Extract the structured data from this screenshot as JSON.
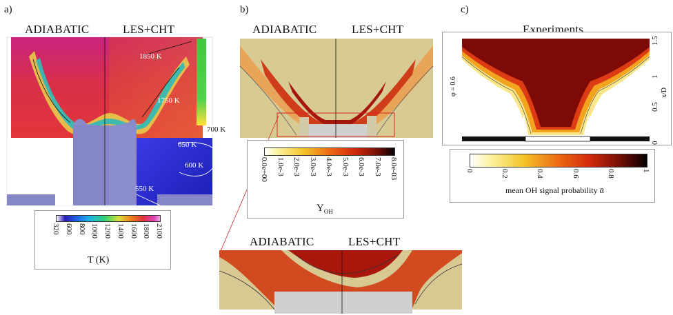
{
  "panel_a": {
    "label": "a)",
    "left_title": "ADIABATIC",
    "right_title": "LES+CHT",
    "isotherms": [
      "1850 K",
      "1750 K",
      "700 K",
      "650 K",
      "600 K",
      "550 K"
    ],
    "colorbar": {
      "label": "T (K)",
      "ticks": [
        "320",
        "600",
        "800",
        "1000",
        "1200",
        "1400",
        "1600",
        "1800",
        "2100"
      ]
    }
  },
  "panel_b": {
    "label": "b)",
    "left_title": "ADIABATIC",
    "right_title": "LES+CHT",
    "zoom_left_title": "ADIABATIC",
    "zoom_right_title": "LES+CHT",
    "colorbar": {
      "label": "Y",
      "label_sub": "OH",
      "ticks": [
        "0.0e+00",
        "1.0e-3",
        "2.0e-3",
        "3.0e-3",
        "4.0e-3",
        "5.0e-3",
        "6.0e-3",
        "7.0e-3",
        "8.0e-03"
      ]
    }
  },
  "panel_c": {
    "label": "c)",
    "title": "Experiments",
    "left_axis_label": "φ = 0.6",
    "right_axis_label": "x/D",
    "right_axis_ticks": [
      "1.5",
      "1",
      "0.5",
      "0"
    ],
    "colorbar": {
      "label": "mean OH signal probability ᾱ",
      "ticks": [
        "0",
        "0.2",
        "0.4",
        "0.6",
        "0.8",
        "1"
      ]
    }
  },
  "colors": {
    "temp_hot": "#dc2a3a",
    "temp_cold": "#1c23c8",
    "solid_wall": "#8486c8",
    "oh_bg": "#d7c990",
    "oh_peak": "#b51a10",
    "exp_peak": "#7d0a06"
  }
}
